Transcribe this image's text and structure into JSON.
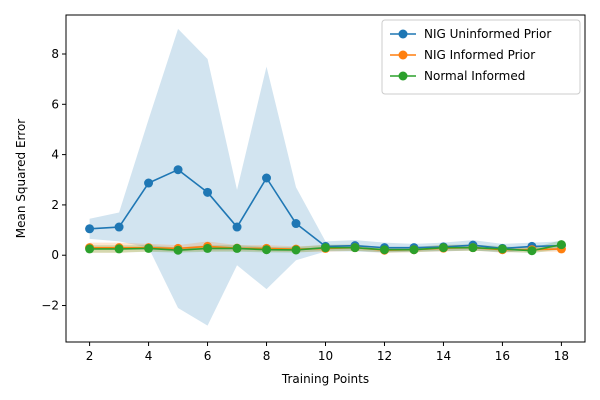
{
  "chart_data": {
    "type": "line",
    "xlabel": "Training Points",
    "ylabel": "Mean Squared Error",
    "xlim": [
      1.2,
      18.8
    ],
    "ylim": [
      -3.45,
      9.55
    ],
    "xticks": [
      2,
      4,
      6,
      8,
      10,
      12,
      14,
      16,
      18
    ],
    "yticks": [
      -2,
      0,
      2,
      4,
      6,
      8
    ],
    "ytick_labels": [
      "−2",
      "0",
      "2",
      "4",
      "6",
      "8"
    ],
    "legend_position": "top-right",
    "x": [
      2,
      3,
      4,
      5,
      6,
      7,
      8,
      9,
      10,
      11,
      12,
      13,
      14,
      15,
      16,
      17,
      18
    ],
    "series": [
      {
        "name": "NIG Uninformed Prior",
        "color": "#1f77b4",
        "band_color": "#1f77b4",
        "band_opacity": 0.2,
        "values": [
          1.05,
          1.12,
          2.87,
          3.4,
          2.5,
          1.12,
          3.07,
          1.26,
          0.35,
          0.38,
          0.3,
          0.3,
          0.33,
          0.4,
          0.27,
          0.35,
          0.38
        ],
        "band_upper": [
          1.45,
          1.7,
          5.4,
          9.0,
          7.8,
          2.6,
          7.5,
          2.7,
          0.55,
          0.6,
          0.5,
          0.45,
          0.5,
          0.6,
          0.45,
          0.5,
          0.55
        ],
        "band_lower": [
          0.65,
          0.55,
          0.3,
          -2.1,
          -2.8,
          -0.4,
          -1.35,
          -0.2,
          0.15,
          0.15,
          0.1,
          0.15,
          0.15,
          0.2,
          0.1,
          0.2,
          0.2
        ]
      },
      {
        "name": "NIG Informed Prior",
        "color": "#ff7f0e",
        "band_color": "#ff7f0e",
        "band_opacity": 0.2,
        "values": [
          0.3,
          0.3,
          0.3,
          0.27,
          0.35,
          0.28,
          0.27,
          0.24,
          0.27,
          0.3,
          0.2,
          0.22,
          0.28,
          0.3,
          0.22,
          0.22,
          0.25
        ],
        "band_upper": [
          0.5,
          0.5,
          0.45,
          0.4,
          0.55,
          0.4,
          0.4,
          0.35,
          0.4,
          0.42,
          0.3,
          0.32,
          0.4,
          0.42,
          0.32,
          0.32,
          0.35
        ],
        "band_lower": [
          0.1,
          0.1,
          0.15,
          0.14,
          0.15,
          0.16,
          0.14,
          0.13,
          0.14,
          0.18,
          0.1,
          0.12,
          0.16,
          0.18,
          0.12,
          0.12,
          0.15
        ]
      },
      {
        "name": "Normal Informed",
        "color": "#2ca02c",
        "band_color": "#2ca02c",
        "band_opacity": 0.2,
        "values": [
          0.25,
          0.25,
          0.27,
          0.2,
          0.27,
          0.27,
          0.22,
          0.21,
          0.3,
          0.3,
          0.22,
          0.22,
          0.3,
          0.3,
          0.25,
          0.18,
          0.42
        ],
        "band_upper": [
          0.4,
          0.4,
          0.4,
          0.3,
          0.4,
          0.4,
          0.33,
          0.32,
          0.42,
          0.42,
          0.32,
          0.32,
          0.42,
          0.42,
          0.36,
          0.28,
          0.6
        ],
        "band_lower": [
          0.1,
          0.1,
          0.14,
          0.1,
          0.14,
          0.14,
          0.11,
          0.1,
          0.18,
          0.18,
          0.12,
          0.12,
          0.18,
          0.18,
          0.14,
          0.08,
          0.24
        ]
      }
    ]
  }
}
